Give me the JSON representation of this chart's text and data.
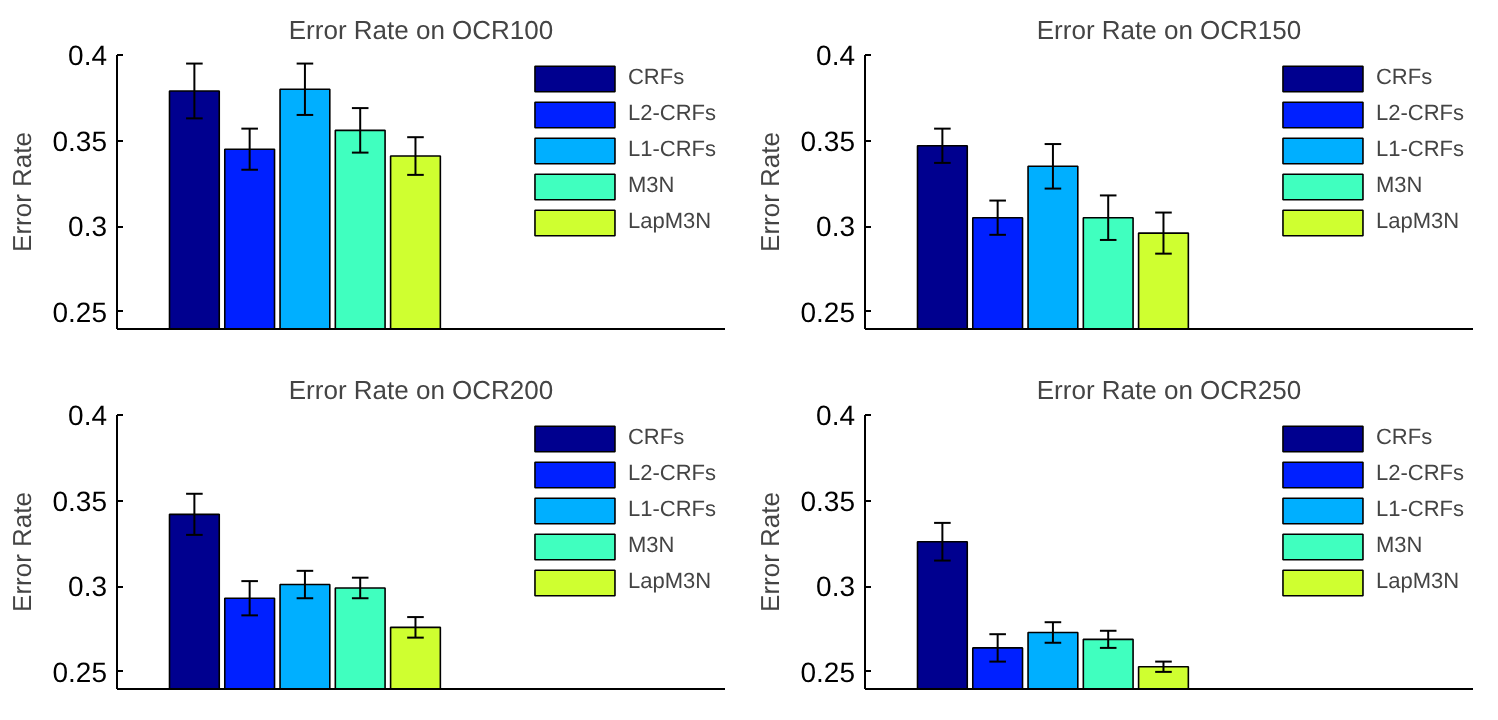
{
  "chart_data": [
    {
      "type": "bar",
      "title": "Error Rate on OCR100",
      "ylabel": "Error Rate",
      "categories": [
        null
      ],
      "ylim": [
        0.24,
        0.4
      ],
      "yticks": [
        0.25,
        0.3,
        0.35,
        0.4
      ],
      "legend": "top right",
      "grid": false,
      "tick_labels": "y",
      "series": [
        {
          "name": "CRFs",
          "color": "#00008f",
          "values": [
            0.379
          ],
          "errors": [
            0.016
          ]
        },
        {
          "name": "L2-CRFs",
          "color": "#0020ff",
          "values": [
            0.345
          ],
          "errors": [
            0.012
          ]
        },
        {
          "name": "L1-CRFs",
          "color": "#00afff",
          "values": [
            0.38
          ],
          "errors": [
            0.015
          ]
        },
        {
          "name": "M3N",
          "color": "#40ffbf",
          "values": [
            0.356
          ],
          "errors": [
            0.013
          ]
        },
        {
          "name": "LapM3N",
          "color": "#cfff30",
          "values": [
            0.341
          ],
          "errors": [
            0.011
          ]
        }
      ]
    },
    {
      "type": "bar",
      "title": "Error Rate on OCR150",
      "ylabel": "Error Rate",
      "categories": [
        null
      ],
      "ylim": [
        0.24,
        0.4
      ],
      "yticks": [
        0.25,
        0.3,
        0.35,
        0.4
      ],
      "legend": "top right",
      "grid": false,
      "tick_labels": "y",
      "series": [
        {
          "name": "CRFs",
          "color": "#00008f",
          "values": [
            0.347
          ],
          "errors": [
            0.01
          ]
        },
        {
          "name": "L2-CRFs",
          "color": "#0020ff",
          "values": [
            0.305
          ],
          "errors": [
            0.01
          ]
        },
        {
          "name": "L1-CRFs",
          "color": "#00afff",
          "values": [
            0.335
          ],
          "errors": [
            0.013
          ]
        },
        {
          "name": "M3N",
          "color": "#40ffbf",
          "values": [
            0.305
          ],
          "errors": [
            0.013
          ]
        },
        {
          "name": "LapM3N",
          "color": "#cfff30",
          "values": [
            0.296
          ],
          "errors": [
            0.012
          ]
        }
      ]
    },
    {
      "type": "bar",
      "title": "Error Rate on OCR200",
      "ylabel": "Error Rate",
      "categories": [
        null
      ],
      "ylim": [
        0.24,
        0.4
      ],
      "yticks": [
        0.25,
        0.3,
        0.35,
        0.4
      ],
      "legend": "top right",
      "grid": false,
      "tick_labels": "y",
      "series": [
        {
          "name": "CRFs",
          "color": "#00008f",
          "values": [
            0.342
          ],
          "errors": [
            0.012
          ]
        },
        {
          "name": "L2-CRFs",
          "color": "#0020ff",
          "values": [
            0.293
          ],
          "errors": [
            0.01
          ]
        },
        {
          "name": "L1-CRFs",
          "color": "#00afff",
          "values": [
            0.301
          ],
          "errors": [
            0.008
          ]
        },
        {
          "name": "M3N",
          "color": "#40ffbf",
          "values": [
            0.299
          ],
          "errors": [
            0.006
          ]
        },
        {
          "name": "LapM3N",
          "color": "#cfff30",
          "values": [
            0.276
          ],
          "errors": [
            0.006
          ]
        }
      ]
    },
    {
      "type": "bar",
      "title": "Error Rate on OCR250",
      "ylabel": "Error Rate",
      "categories": [
        null
      ],
      "ylim": [
        0.24,
        0.4
      ],
      "yticks": [
        0.25,
        0.3,
        0.35,
        0.4
      ],
      "legend": "top right",
      "grid": false,
      "tick_labels": "y",
      "series": [
        {
          "name": "CRFs",
          "color": "#00008f",
          "values": [
            0.326
          ],
          "errors": [
            0.011
          ]
        },
        {
          "name": "L2-CRFs",
          "color": "#0020ff",
          "values": [
            0.264
          ],
          "errors": [
            0.008
          ]
        },
        {
          "name": "L1-CRFs",
          "color": "#00afff",
          "values": [
            0.273
          ],
          "errors": [
            0.006
          ]
        },
        {
          "name": "M3N",
          "color": "#40ffbf",
          "values": [
            0.269
          ],
          "errors": [
            0.005
          ]
        },
        {
          "name": "LapM3N",
          "color": "#cfff30",
          "values": [
            0.253
          ],
          "errors": [
            0.003
          ]
        }
      ]
    }
  ]
}
